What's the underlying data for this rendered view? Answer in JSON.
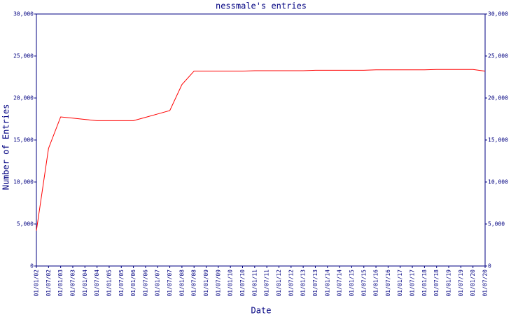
{
  "chart_data": {
    "type": "line",
    "title": "nessmale's entries",
    "x_label": "Date",
    "y_label": "Number of Entries",
    "categories": [
      "01/01/02",
      "01/07/02",
      "01/01/03",
      "01/07/03",
      "01/01/04",
      "01/07/04",
      "01/01/05",
      "01/07/05",
      "01/01/06",
      "01/07/06",
      "01/01/07",
      "01/07/07",
      "01/01/08",
      "01/07/08",
      "01/01/09",
      "01/07/09",
      "01/01/10",
      "01/07/10",
      "01/01/11",
      "01/07/11",
      "01/01/12",
      "01/07/12",
      "01/01/13",
      "01/07/13",
      "01/01/14",
      "01/07/14",
      "01/01/15",
      "01/07/15",
      "01/01/16",
      "01/07/16",
      "01/01/17",
      "01/07/17",
      "01/01/18",
      "01/07/18",
      "01/01/19",
      "01/07/19",
      "01/01/20",
      "01/07/20"
    ],
    "series": [
      {
        "name": "entries",
        "color": "#ff0000",
        "values": [
          4200,
          14000,
          17750,
          17600,
          17450,
          17300,
          17300,
          17300,
          17300,
          17700,
          18100,
          18500,
          21600,
          23200,
          23200,
          23200,
          23200,
          23200,
          23250,
          23250,
          23250,
          23250,
          23250,
          23300,
          23300,
          23300,
          23300,
          23300,
          23350,
          23350,
          23350,
          23350,
          23350,
          23400,
          23400,
          23400,
          23400,
          23200
        ]
      }
    ],
    "ylim": [
      0,
      30000
    ],
    "yticks": [
      0,
      {
        "value": 5000,
        "label": "5,000"
      },
      {
        "value": 10000,
        "label": "10,000"
      },
      {
        "value": 15000,
        "label": "15,000"
      },
      {
        "value": 20000,
        "label": "20,000"
      },
      {
        "value": 25000,
        "label": "25,000"
      },
      {
        "value": 30000,
        "label": "30,000"
      }
    ],
    "axis_color": "#000080"
  }
}
